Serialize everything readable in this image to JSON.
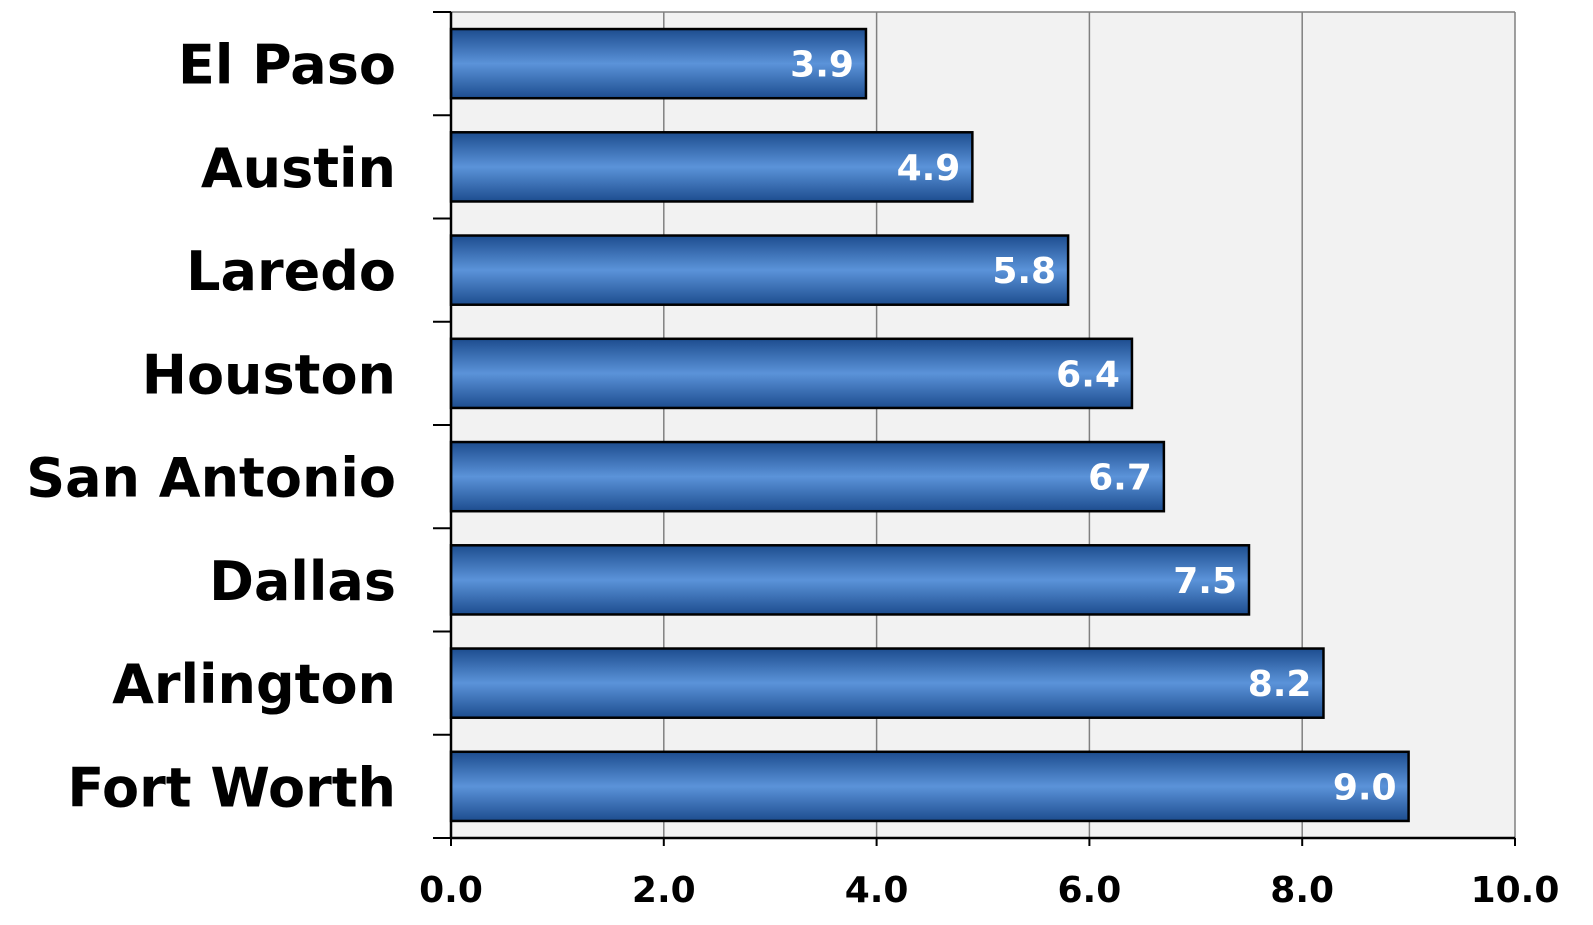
{
  "chart_data": {
    "type": "bar",
    "orientation": "horizontal",
    "categories": [
      "El Paso",
      "Austin",
      "Laredo",
      "Houston",
      "San Antonio",
      "Dallas",
      "Arlington",
      "Fort Worth"
    ],
    "values": [
      3.9,
      4.9,
      5.8,
      6.4,
      6.7,
      7.5,
      8.2,
      9.0
    ],
    "value_labels": [
      "3.9",
      "4.9",
      "5.8",
      "6.4",
      "6.7",
      "7.5",
      "8.2",
      "9.0"
    ],
    "x_ticks": [
      "0.0",
      "2.0",
      "4.0",
      "6.0",
      "8.0",
      "10.0"
    ],
    "xlim": [
      0,
      10
    ],
    "title": "",
    "xlabel": "",
    "ylabel": "",
    "grid": "vertical",
    "legend": "none",
    "colors": {
      "bar_fill_mid": "#5b93d9",
      "bar_fill_edge": "#1d4d8f",
      "bar_stroke": "#000000",
      "plot_background": "#f2f2f2",
      "grid": "#808080",
      "value_label": "#ffffff"
    }
  }
}
